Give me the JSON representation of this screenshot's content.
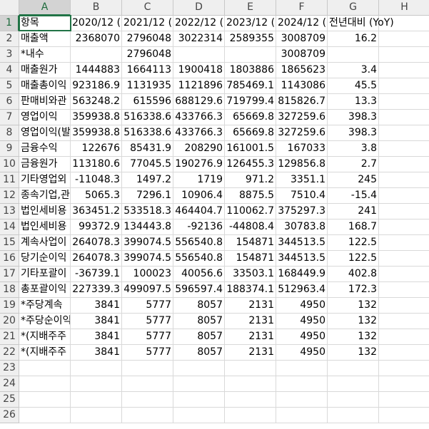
{
  "sheet": {
    "columns": [
      "A",
      "B",
      "C",
      "D",
      "E",
      "F",
      "G",
      "H"
    ],
    "row_numbers": [
      1,
      2,
      3,
      4,
      5,
      6,
      7,
      8,
      9,
      10,
      11,
      12,
      13,
      14,
      15,
      16,
      17,
      18,
      19,
      20,
      21,
      22,
      23,
      24,
      25,
      26
    ],
    "rows": [
      [
        "항목",
        "2020/12 (I",
        "2021/12 (",
        "2022/12 (I",
        "2023/12 (I",
        "2024/12 (I",
        "전년대비 (YoY)"
      ],
      [
        "매출액",
        2368070,
        2796048,
        3022314,
        2589355,
        3008709,
        16.2
      ],
      [
        "*내수",
        null,
        2796048,
        null,
        null,
        3008709,
        null
      ],
      [
        "매출원가",
        1444883,
        1664113,
        1900418,
        1803886,
        1865623,
        3.4
      ],
      [
        "매출총이익",
        923186.9,
        1131935,
        1121896,
        785469.1,
        1143086,
        45.5
      ],
      [
        "판매비와관",
        563248.2,
        615596,
        688129.6,
        719799.4,
        815826.7,
        13.3
      ],
      [
        "영업이익",
        359938.8,
        516338.6,
        433766.3,
        65669.8,
        327259.6,
        398.3
      ],
      [
        "영업이익(발",
        359938.8,
        516338.6,
        433766.3,
        65669.8,
        327259.6,
        398.3
      ],
      [
        "금융수익",
        122676,
        85431.9,
        208290,
        161001.5,
        167033,
        3.8
      ],
      [
        "금융원가",
        113180.6,
        77045.5,
        190276.9,
        126455.3,
        129856.8,
        2.7
      ],
      [
        "기타영업외",
        -11048.3,
        1497.2,
        1719,
        971.2,
        3351.1,
        245
      ],
      [
        "종속기업,관",
        5065.3,
        7296.1,
        10906.4,
        8875.5,
        7510.4,
        -15.4
      ],
      [
        "법인세비용",
        363451.2,
        533518.3,
        464404.7,
        110062.7,
        375297.3,
        241
      ],
      [
        "법인세비용",
        99372.9,
        134443.8,
        -92136,
        -44808.4,
        30783.8,
        168.7
      ],
      [
        "계속사업이",
        264078.3,
        399074.5,
        556540.8,
        154871,
        344513.5,
        122.5
      ],
      [
        "당기순이익",
        264078.3,
        399074.5,
        556540.8,
        154871,
        344513.5,
        122.5
      ],
      [
        "기타포괄이",
        -36739.1,
        100023,
        40056.6,
        33503.1,
        168449.9,
        402.8
      ],
      [
        "총포괄이익",
        227339.3,
        499097.5,
        596597.4,
        188374.1,
        512963.4,
        172.3
      ],
      [
        "*주당계속",
        3841,
        5777,
        8057,
        2131,
        4950,
        132
      ],
      [
        "*주당순이익",
        3841,
        5777,
        8057,
        2131,
        4950,
        132
      ],
      [
        "*(지배주주",
        3841,
        5777,
        8057,
        2131,
        4950,
        132
      ],
      [
        "*(지배주주",
        3841,
        5777,
        8057,
        2131,
        4950,
        132
      ]
    ]
  }
}
